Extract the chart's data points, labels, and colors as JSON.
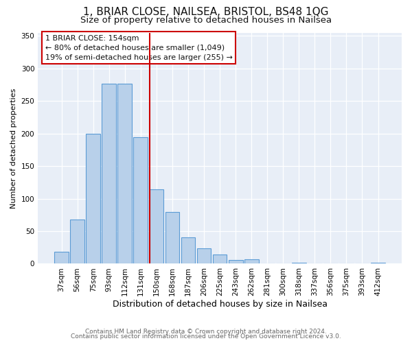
{
  "title": "1, BRIAR CLOSE, NAILSEA, BRISTOL, BS48 1QG",
  "subtitle": "Size of property relative to detached houses in Nailsea",
  "xlabel": "Distribution of detached houses by size in Nailsea",
  "ylabel": "Number of detached properties",
  "categories": [
    "37sqm",
    "56sqm",
    "75sqm",
    "93sqm",
    "112sqm",
    "131sqm",
    "150sqm",
    "168sqm",
    "187sqm",
    "206sqm",
    "225sqm",
    "243sqm",
    "262sqm",
    "281sqm",
    "300sqm",
    "318sqm",
    "337sqm",
    "356sqm",
    "375sqm",
    "393sqm",
    "412sqm"
  ],
  "values": [
    18,
    68,
    200,
    277,
    277,
    194,
    114,
    79,
    40,
    24,
    14,
    6,
    7,
    0,
    0,
    2,
    0,
    0,
    0,
    0,
    2
  ],
  "bar_color": "#b8d0ea",
  "bar_edge_color": "#5b9bd5",
  "marker_index": 6,
  "marker_color": "#cc0000",
  "ylim": [
    0,
    355
  ],
  "yticks": [
    0,
    50,
    100,
    150,
    200,
    250,
    300,
    350
  ],
  "annotation_title": "1 BRIAR CLOSE: 154sqm",
  "annotation_line1": "← 80% of detached houses are smaller (1,049)",
  "annotation_line2": "19% of semi-detached houses are larger (255) →",
  "footer1": "Contains HM Land Registry data © Crown copyright and database right 2024.",
  "footer2": "Contains public sector information licensed under the Open Government Licence v3.0.",
  "bg_color": "#e8eef7",
  "title_fontsize": 11,
  "subtitle_fontsize": 9.5,
  "xlabel_fontsize": 9,
  "ylabel_fontsize": 8,
  "tick_fontsize": 7.5,
  "ann_fontsize": 8,
  "footer_fontsize": 6.5
}
